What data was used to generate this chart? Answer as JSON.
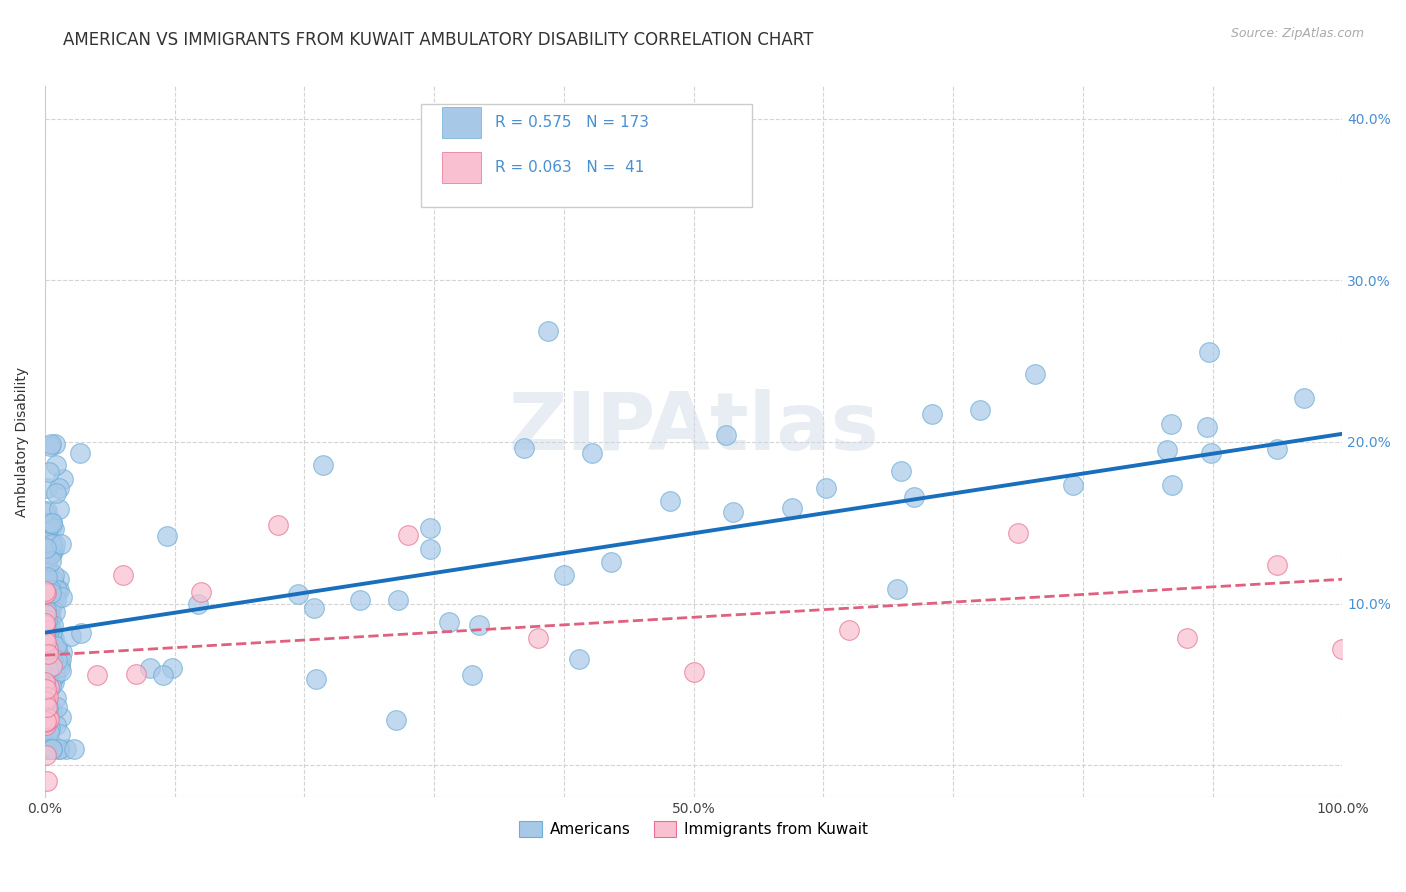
{
  "title": "AMERICAN VS IMMIGRANTS FROM KUWAIT AMBULATORY DISABILITY CORRELATION CHART",
  "source": "Source: ZipAtlas.com",
  "ylabel": "Ambulatory Disability",
  "xlabel": "",
  "watermark": "ZIPAtlas",
  "americans": {
    "R": 0.575,
    "N": 173,
    "color": "#a8c8e8",
    "edge_color": "#6baed6",
    "line_color": "#1a6fbd",
    "label": "Americans",
    "am_line_y0": 0.082,
    "am_line_y1": 0.205
  },
  "kuwait": {
    "R": 0.063,
    "N": 41,
    "color": "#f8c0d0",
    "edge_color": "#e87090",
    "line_color": "#e06080",
    "label": "Immigrants from Kuwait",
    "kw_line_y0": 0.068,
    "kw_line_y1": 0.115
  },
  "xlim": [
    0.0,
    1.0
  ],
  "ylim": [
    -0.02,
    0.42
  ],
  "xticks": [
    0.0,
    0.1,
    0.2,
    0.3,
    0.4,
    0.5,
    0.6,
    0.7,
    0.8,
    0.9,
    1.0
  ],
  "yticks": [
    0.0,
    0.1,
    0.2,
    0.3,
    0.4
  ],
  "xticklabels": [
    "0.0%",
    "",
    "",
    "",
    "",
    "50.0%",
    "",
    "",
    "",
    "",
    "100.0%"
  ],
  "yticklabels_right": [
    "",
    "10.0%",
    "20.0%",
    "30.0%",
    "40.0%"
  ],
  "background_color": "#ffffff",
  "grid_color": "#d0d0d0",
  "title_fontsize": 12,
  "axis_label_fontsize": 10,
  "tick_fontsize": 10,
  "legend_fontsize": 11,
  "right_tick_color": "#4a90d0"
}
